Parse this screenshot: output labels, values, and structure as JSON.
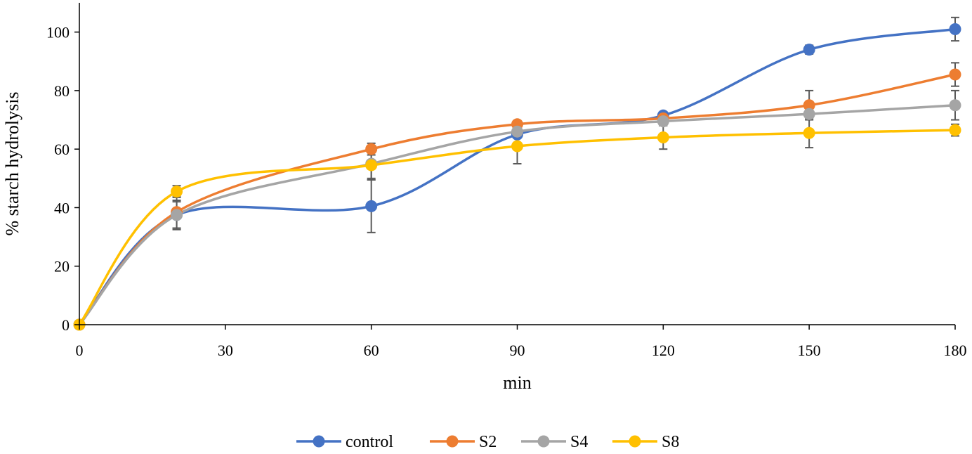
{
  "chart_data": {
    "type": "line",
    "title": "",
    "xlabel": "min",
    "ylabel": "% starch hydrolysis",
    "xlim": [
      0,
      180
    ],
    "ylim": [
      0,
      110
    ],
    "xticks": [
      0,
      30,
      60,
      90,
      120,
      150,
      180
    ],
    "yticks": [
      0,
      20,
      40,
      60,
      80,
      100
    ],
    "grid": false,
    "smooth": true,
    "legend_position": "bottom",
    "x": [
      0,
      20,
      60,
      90,
      120,
      150,
      180
    ],
    "series": [
      {
        "name": "control",
        "color": "#4472C4",
        "values": [
          0,
          37.5,
          40.5,
          65,
          71.5,
          94,
          101
        ],
        "error": [
          0,
          4.5,
          9,
          0,
          0,
          1.5,
          4
        ]
      },
      {
        "name": "S2",
        "color": "#ED7D31",
        "values": [
          0,
          38.5,
          60,
          68.5,
          70.5,
          75,
          85.5
        ],
        "error": [
          0,
          5.5,
          2,
          1,
          0,
          5,
          4
        ]
      },
      {
        "name": "S4",
        "color": "#A5A5A5",
        "values": [
          0,
          37.5,
          55,
          66,
          69.5,
          72,
          75
        ],
        "error": [
          0,
          5,
          5,
          0,
          0,
          0,
          5
        ]
      },
      {
        "name": "S8",
        "color": "#FFC000",
        "values": [
          0,
          45.5,
          54.5,
          61,
          64,
          65.5,
          66.5
        ],
        "error": [
          0,
          2,
          5,
          6,
          4,
          5,
          2
        ]
      }
    ]
  }
}
